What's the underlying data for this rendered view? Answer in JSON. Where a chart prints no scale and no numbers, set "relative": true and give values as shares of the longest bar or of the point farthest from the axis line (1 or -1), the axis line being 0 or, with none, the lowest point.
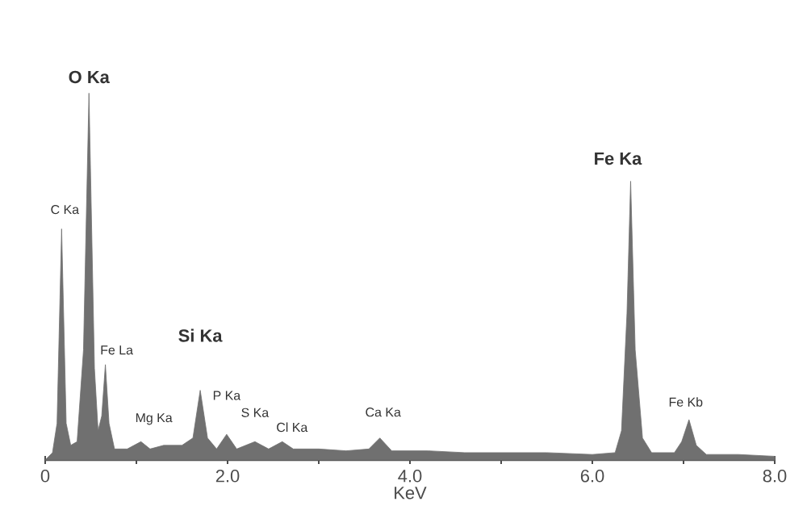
{
  "chart_data": {
    "type": "area",
    "relative": true,
    "xlabel": "KeV",
    "color": "#707070",
    "xlim": [
      0,
      8
    ],
    "xticks": [
      {
        "value": 0,
        "label": "0"
      },
      {
        "value": 1,
        "label": null
      },
      {
        "value": 2,
        "label": "2.0"
      },
      {
        "value": 3,
        "label": null
      },
      {
        "value": 4,
        "label": "4.0"
      },
      {
        "value": 5,
        "label": null
      },
      {
        "value": 6,
        "label": "6.0"
      },
      {
        "value": 7,
        "label": null
      },
      {
        "value": 8,
        "label": "8.0"
      }
    ],
    "x": [
      0,
      0.08,
      0.13,
      0.18,
      0.23,
      0.28,
      0.35,
      0.42,
      0.48,
      0.54,
      0.58,
      0.62,
      0.66,
      0.7,
      0.76,
      0.9,
      1.05,
      1.15,
      1.3,
      1.5,
      1.62,
      1.7,
      1.78,
      1.88,
      1.99,
      2.1,
      2.3,
      2.45,
      2.6,
      2.72,
      3.0,
      3.3,
      3.55,
      3.67,
      3.8,
      4.2,
      4.6,
      5.0,
      5.5,
      6.0,
      6.25,
      6.32,
      6.38,
      6.42,
      6.47,
      6.55,
      6.65,
      6.9,
      6.98,
      7.06,
      7.14,
      7.25,
      7.6,
      8.0
    ],
    "values": [
      0,
      0.02,
      0.1,
      0.63,
      0.1,
      0.04,
      0.05,
      0.3,
      1.0,
      0.25,
      0.08,
      0.12,
      0.26,
      0.1,
      0.03,
      0.03,
      0.05,
      0.03,
      0.04,
      0.04,
      0.06,
      0.19,
      0.06,
      0.03,
      0.07,
      0.03,
      0.05,
      0.03,
      0.05,
      0.03,
      0.03,
      0.025,
      0.03,
      0.06,
      0.025,
      0.025,
      0.02,
      0.02,
      0.02,
      0.015,
      0.02,
      0.08,
      0.4,
      0.76,
      0.3,
      0.06,
      0.02,
      0.02,
      0.05,
      0.11,
      0.04,
      0.015,
      0.015,
      0.01
    ],
    "annotations": [
      {
        "text": "O Ka",
        "x": 0.48,
        "y": 1.0
      },
      {
        "text": "C Ka",
        "x": 0.18,
        "y": 0.63
      },
      {
        "text": "Fe La",
        "x": 0.66,
        "y": 0.26
      },
      {
        "text": "Mg Ka",
        "x": 1.05,
        "y": 0.05
      },
      {
        "text": "Si Ka",
        "x": 1.7,
        "y": 0.19
      },
      {
        "text": "P Ka",
        "x": 1.99,
        "y": 0.07
      },
      {
        "text": "S Ka",
        "x": 2.3,
        "y": 0.05
      },
      {
        "text": "Cl Ka",
        "x": 2.6,
        "y": 0.05
      },
      {
        "text": "Ca Ka",
        "x": 3.67,
        "y": 0.06
      },
      {
        "text": "Fe Ka",
        "x": 6.42,
        "y": 0.76
      },
      {
        "text": "Fe Kb",
        "x": 7.06,
        "y": 0.11
      }
    ]
  }
}
